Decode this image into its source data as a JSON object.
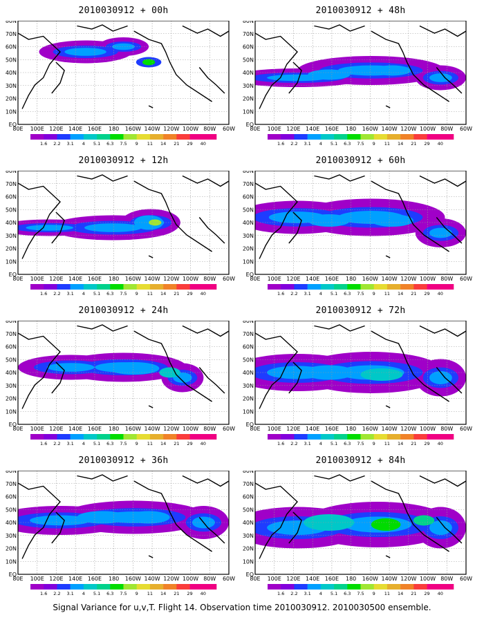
{
  "caption": "Signal Variance for u,v,T. Flight 14. Observation time 2010030912. 2010030500 ensemble.",
  "lat_labels": [
    "80N",
    "70N",
    "60N",
    "50N",
    "40N",
    "30N",
    "20N",
    "10N",
    "EQ"
  ],
  "lon_labels": [
    "80E",
    "100E",
    "120E",
    "140E",
    "160E",
    "180",
    "160W",
    "140W",
    "120W",
    "100W",
    "80W",
    "60W"
  ],
  "colorbar": {
    "labels": [
      "1.6",
      "2.2",
      "3.1",
      "4",
      "5.1",
      "6.3",
      "7.5",
      "9",
      "11",
      "14",
      "21",
      "29",
      "40"
    ],
    "colors": [
      "#a000c8",
      "#8200dc",
      "#1e3cff",
      "#00a0ff",
      "#00c8c8",
      "#00d28c",
      "#00dc00",
      "#a0e632",
      "#e6dc32",
      "#e6af2d",
      "#f08228",
      "#fa3c3c",
      "#f00082",
      "#f00082"
    ]
  },
  "panels": [
    {
      "title": "2010030912 + 00h",
      "lead": "00h"
    },
    {
      "title": "2010030912 + 48h",
      "lead": "48h"
    },
    {
      "title": "2010030912 + 12h",
      "lead": "12h"
    },
    {
      "title": "2010030912 + 60h",
      "lead": "60h"
    },
    {
      "title": "2010030912 + 24h",
      "lead": "24h"
    },
    {
      "title": "2010030912 + 72h",
      "lead": "72h"
    },
    {
      "title": "2010030912 + 36h",
      "lead": "36h"
    },
    {
      "title": "2010030912 + 84h",
      "lead": "84h"
    }
  ]
}
